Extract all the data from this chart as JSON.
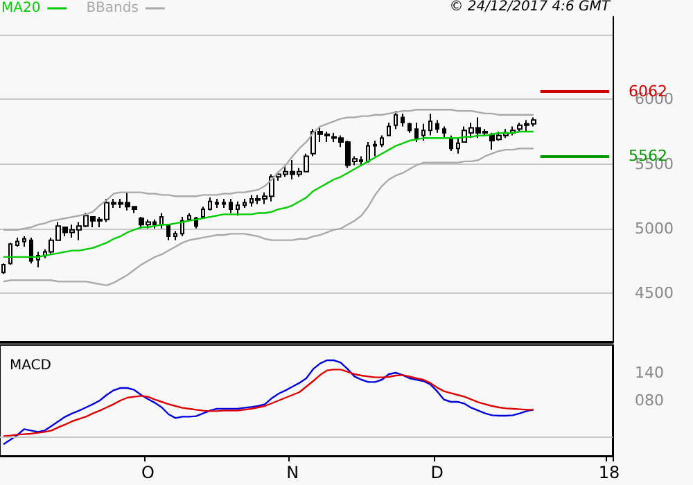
{
  "chart_data": [
    {
      "type": "candlestick",
      "annotations": [
        "© 24/12/2017 4:6 GMT"
      ],
      "categories": [
        null,
        null,
        null,
        null,
        null,
        null,
        null,
        null,
        null,
        null,
        null,
        null,
        null,
        null,
        null,
        null,
        null,
        null,
        null,
        null,
        null,
        null,
        null,
        null,
        null,
        null,
        null,
        null,
        null,
        null,
        null,
        null,
        null,
        null,
        null,
        null,
        null,
        null,
        null,
        null,
        null,
        null,
        null,
        null,
        null,
        null,
        null,
        null,
        null,
        null,
        null,
        null,
        null,
        null,
        null,
        null,
        null,
        null,
        null,
        null,
        null,
        null,
        null,
        null,
        null,
        null,
        null,
        null,
        null,
        null,
        null,
        null,
        null,
        null,
        null,
        null,
        null,
        null,
        null,
        null,
        null,
        null,
        null,
        null,
        null,
        null,
        null,
        null,
        null
      ],
      "series": [
        {
          "color": "#000000",
          "ohlc": [
            [
              4660,
              4730,
              4650,
              4720
            ],
            [
              4730,
              4890,
              4720,
              4880
            ],
            [
              4870,
              4930,
              4860,
              4900
            ],
            [
              4900,
              4940,
              4860,
              4920
            ],
            [
              4910,
              4930,
              4730,
              4750
            ],
            [
              4760,
              4820,
              4700,
              4790
            ],
            [
              4790,
              4840,
              4770,
              4820
            ],
            [
              4820,
              4930,
              4800,
              4910
            ],
            [
              4910,
              5050,
              4910,
              5020
            ],
            [
              5010,
              5010,
              4940,
              4970
            ],
            [
              4970,
              5030,
              4930,
              4990
            ],
            [
              4990,
              5050,
              4910,
              5020
            ],
            [
              5020,
              5120,
              5010,
              5100
            ],
            [
              5090,
              5090,
              5010,
              5060
            ],
            [
              5060,
              5090,
              5010,
              5070
            ],
            [
              5070,
              5230,
              5050,
              5200
            ],
            [
              5200,
              5230,
              5160,
              5190
            ],
            [
              5190,
              5230,
              5160,
              5200
            ],
            [
              5200,
              5280,
              5140,
              5170
            ],
            [
              5170,
              5170,
              5120,
              5150
            ],
            [
              5080,
              5090,
              5000,
              5030
            ],
            [
              5030,
              5070,
              5000,
              5050
            ],
            [
              5050,
              5070,
              5000,
              5030
            ],
            [
              5030,
              5120,
              5000,
              5090
            ],
            [
              5030,
              5030,
              4910,
              4940
            ],
            [
              4940,
              4980,
              4910,
              4960
            ],
            [
              4960,
              5090,
              4940,
              5060
            ],
            [
              5070,
              5120,
              5070,
              5100
            ],
            [
              5080,
              5090,
              5000,
              5020
            ],
            [
              5090,
              5170,
              5090,
              5150
            ],
            [
              5150,
              5240,
              5140,
              5210
            ],
            [
              5200,
              5230,
              5160,
              5190
            ],
            [
              5190,
              5230,
              5160,
              5200
            ],
            [
              5200,
              5230,
              5120,
              5150
            ],
            [
              5150,
              5210,
              5100,
              5180
            ],
            [
              5180,
              5230,
              5160,
              5200
            ],
            [
              5200,
              5260,
              5170,
              5230
            ],
            [
              5220,
              5260,
              5190,
              5230
            ],
            [
              5230,
              5280,
              5190,
              5250
            ],
            [
              5250,
              5420,
              5210,
              5400
            ],
            [
              5400,
              5440,
              5370,
              5420
            ],
            [
              5420,
              5490,
              5400,
              5440
            ],
            [
              5440,
              5530,
              5380,
              5420
            ],
            [
              5420,
              5470,
              5400,
              5440
            ],
            [
              5440,
              5580,
              5440,
              5560
            ],
            [
              5580,
              5770,
              5560,
              5750
            ],
            [
              5750,
              5790,
              5670,
              5730
            ],
            [
              5730,
              5750,
              5670,
              5720
            ],
            [
              5710,
              5740,
              5670,
              5700
            ],
            [
              5700,
              5720,
              5630,
              5670
            ],
            [
              5670,
              5680,
              5470,
              5490
            ],
            [
              5520,
              5560,
              5490,
              5540
            ],
            [
              5530,
              5560,
              5490,
              5520
            ],
            [
              5520,
              5670,
              5510,
              5640
            ],
            [
              5640,
              5680,
              5560,
              5650
            ],
            [
              5650,
              5720,
              5630,
              5700
            ],
            [
              5720,
              5820,
              5720,
              5790
            ],
            [
              5800,
              5910,
              5770,
              5880
            ],
            [
              5860,
              5890,
              5790,
              5820
            ],
            [
              5810,
              5820,
              5740,
              5760
            ],
            [
              5770,
              5820,
              5670,
              5700
            ],
            [
              5720,
              5810,
              5680,
              5760
            ],
            [
              5760,
              5890,
              5720,
              5830
            ],
            [
              5810,
              5840,
              5740,
              5770
            ],
            [
              5770,
              5790,
              5700,
              5740
            ],
            [
              5700,
              5720,
              5600,
              5620
            ],
            [
              5620,
              5700,
              5580,
              5660
            ],
            [
              5670,
              5790,
              5670,
              5760
            ],
            [
              5740,
              5820,
              5700,
              5780
            ],
            [
              5780,
              5860,
              5700,
              5740
            ],
            [
              5740,
              5770,
              5720,
              5750
            ],
            [
              5720,
              5740,
              5610,
              5680
            ],
            [
              5690,
              5750,
              5680,
              5720
            ],
            [
              5720,
              5770,
              5700,
              5740
            ],
            [
              5740,
              5790,
              5720,
              5760
            ],
            [
              5770,
              5820,
              5750,
              5800
            ],
            [
              5800,
              5840,
              5750,
              5810
            ],
            [
              5810,
              5860,
              5790,
              5840
            ],
            null,
            null,
            null,
            null,
            null,
            null,
            null,
            null,
            null,
            null,
            null
          ]
        },
        {
          "type": "line",
          "name": "MA20",
          "color": "#00cc00",
          "values": [
            4780,
            4780,
            4780,
            4780,
            4780,
            4780,
            4790,
            4800,
            4810,
            4820,
            4830,
            4830,
            4840,
            4850,
            4870,
            4890,
            4920,
            4940,
            4970,
            4990,
            5010,
            5010,
            5020,
            5030,
            5030,
            5040,
            5050,
            5060,
            5070,
            5080,
            5090,
            5100,
            5110,
            5110,
            5110,
            5110,
            5110,
            5120,
            5120,
            5130,
            5150,
            5160,
            5180,
            5210,
            5240,
            5290,
            5320,
            5350,
            5380,
            5400,
            5430,
            5460,
            5490,
            5520,
            5550,
            5580,
            5610,
            5640,
            5660,
            5680,
            5690,
            5700,
            5700,
            5700,
            5700,
            5700,
            5700,
            5710,
            5710,
            5720,
            5720,
            5730,
            5740,
            5740,
            5740,
            5750,
            5750,
            5750,
            null,
            null,
            null,
            null,
            null,
            null,
            null,
            null,
            null,
            null,
            null
          ]
        },
        {
          "type": "line",
          "name": "BBands",
          "color": "#aaaaaa",
          "values": [
            4990,
            4990,
            4990,
            5000,
            5010,
            5030,
            5040,
            5060,
            5070,
            5080,
            5090,
            5100,
            5110,
            5130,
            5180,
            5220,
            5270,
            5280,
            5280,
            5280,
            5280,
            5270,
            5270,
            5260,
            5260,
            5250,
            5250,
            5250,
            5250,
            5260,
            5260,
            5260,
            5270,
            5270,
            5280,
            5280,
            5290,
            5300,
            5330,
            5380,
            5440,
            5490,
            5560,
            5620,
            5670,
            5740,
            5790,
            5810,
            5830,
            5850,
            5860,
            5860,
            5870,
            5870,
            5880,
            5880,
            5890,
            5900,
            5910,
            5910,
            5920,
            5920,
            5920,
            5920,
            5920,
            5920,
            5910,
            5910,
            5910,
            5900,
            5890,
            5890,
            5880,
            5880,
            5880,
            5880,
            5880,
            5880,
            null,
            null,
            null,
            null,
            null,
            null,
            null,
            null,
            null,
            null,
            null
          ]
        },
        {
          "type": "line",
          "color": "#aaaaaa",
          "values": [
            4590,
            4600,
            4600,
            4600,
            4600,
            4600,
            4600,
            4600,
            4590,
            4590,
            4590,
            4590,
            4590,
            4580,
            4570,
            4560,
            4580,
            4610,
            4640,
            4680,
            4720,
            4750,
            4780,
            4800,
            4830,
            4860,
            4890,
            4910,
            4920,
            4930,
            4940,
            4950,
            4950,
            4960,
            4960,
            4960,
            4950,
            4940,
            4920,
            4910,
            4910,
            4910,
            4910,
            4920,
            4920,
            4940,
            4950,
            4970,
            4990,
            5000,
            5030,
            5060,
            5100,
            5170,
            5260,
            5330,
            5380,
            5410,
            5430,
            5460,
            5490,
            5510,
            5510,
            5510,
            5510,
            5510,
            5510,
            5520,
            5520,
            5530,
            5560,
            5580,
            5600,
            5610,
            5610,
            5620,
            5620,
            5620,
            null,
            null,
            null,
            null,
            null,
            null,
            null,
            null,
            null,
            null,
            null
          ]
        }
      ],
      "ylim": [
        4120,
        6640
      ],
      "yticks": [
        4500,
        5000,
        5500,
        6000,
        {
          "value": 6500,
          "label": null
        }
      ],
      "grid": "y",
      "tick_labels": "y",
      "legend": "top left",
      "marker": "none",
      "ref_lines": [
        {
          "axis": "y",
          "value": 6062,
          "label": "6062",
          "color": "#cc0000"
        },
        {
          "axis": "y",
          "value": 5562,
          "label": "5562",
          "color": "#009900"
        }
      ]
    },
    {
      "type": "line",
      "title": "MACD",
      "categories": [
        null,
        null,
        null,
        null,
        null,
        null,
        null,
        null,
        null,
        null,
        null,
        null,
        null,
        null,
        null,
        null,
        null,
        null,
        null,
        null,
        null,
        "O",
        null,
        null,
        null,
        null,
        null,
        null,
        null,
        null,
        null,
        null,
        null,
        null,
        null,
        null,
        null,
        null,
        null,
        null,
        null,
        null,
        "N",
        null,
        null,
        null,
        null,
        null,
        null,
        null,
        null,
        null,
        null,
        null,
        null,
        null,
        null,
        null,
        null,
        null,
        null,
        null,
        null,
        "D",
        null,
        null,
        null,
        null,
        null,
        null,
        null,
        null,
        null,
        null,
        null,
        null,
        null,
        null,
        null,
        null,
        null,
        null,
        null,
        null,
        null,
        null,
        null,
        null,
        "18"
      ],
      "series": [
        {
          "color": "#0000dd",
          "values": [
            -15,
            -5,
            5,
            18,
            15,
            12,
            15,
            25,
            35,
            45,
            52,
            58,
            65,
            72,
            80,
            92,
            102,
            107,
            107,
            103,
            92,
            83,
            75,
            65,
            50,
            42,
            45,
            45,
            46,
            52,
            58,
            62,
            62,
            62,
            62,
            64,
            66,
            68,
            72,
            85,
            95,
            102,
            110,
            118,
            128,
            148,
            160,
            167,
            167,
            162,
            148,
            132,
            125,
            120,
            120,
            125,
            137,
            140,
            135,
            128,
            125,
            122,
            115,
            100,
            82,
            77,
            77,
            73,
            64,
            58,
            52,
            48,
            47,
            47,
            48,
            52,
            57,
            60,
            null,
            null,
            null,
            null,
            null,
            null,
            null,
            null,
            null,
            null,
            null
          ]
        },
        {
          "color": "#dd0000",
          "values": [
            3,
            4,
            6,
            7,
            8,
            10,
            12,
            15,
            22,
            28,
            35,
            40,
            45,
            52,
            58,
            65,
            72,
            80,
            86,
            88,
            90,
            88,
            82,
            77,
            72,
            68,
            64,
            62,
            60,
            58,
            57,
            57,
            58,
            58,
            58,
            60,
            62,
            65,
            68,
            74,
            80,
            86,
            92,
            98,
            110,
            122,
            135,
            145,
            147,
            147,
            142,
            137,
            134,
            132,
            130,
            130,
            131,
            134,
            135,
            132,
            128,
            125,
            118,
            108,
            100,
            96,
            92,
            88,
            82,
            76,
            72,
            68,
            65,
            63,
            62,
            61,
            60,
            60,
            null,
            null,
            null,
            null,
            null,
            null,
            null,
            null,
            null,
            null,
            null
          ]
        }
      ],
      "ylim": [
        -40,
        200
      ],
      "yticks": [
        {
          "value": 80,
          "label": "080"
        },
        {
          "value": 140,
          "label": "140"
        }
      ],
      "marker": "none",
      "ref_lines": [
        {
          "axis": "y",
          "value": 0,
          "color": "#c8c8c8"
        }
      ]
    }
  ]
}
